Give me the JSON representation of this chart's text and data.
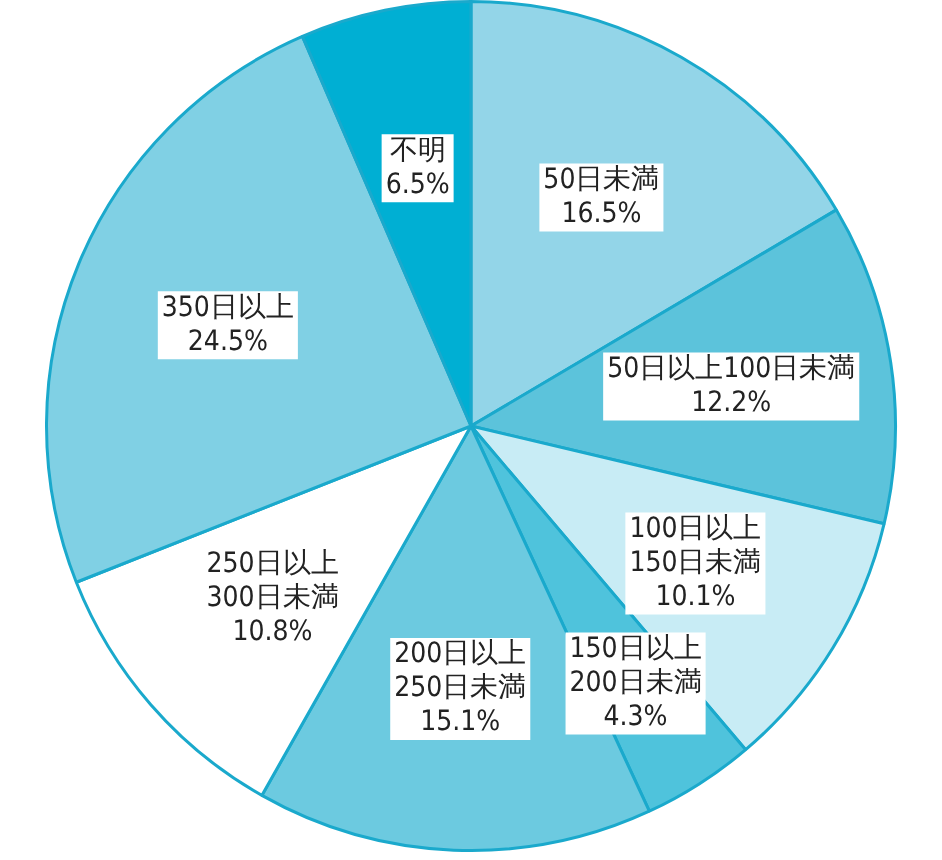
{
  "chart_data": {
    "type": "pie",
    "categories": [
      "50日未満",
      "50日以上100日未満",
      "100日以上\n150日未満",
      "150日以上\n200日未満",
      "200日以上\n250日未満",
      "250日以上\n300日未満",
      "350日以上",
      "不明"
    ],
    "values": [
      16.5,
      12.2,
      10.1,
      4.3,
      15.1,
      10.8,
      24.5,
      6.5
    ],
    "colors": [
      "#93d5e8",
      "#5cc3db",
      "#c8ecf5",
      "#4fc3dc",
      "#6ccae0",
      "#ffffff",
      "#80d0e4",
      "#00afd3"
    ],
    "value_labels": [
      "16.5%",
      "12.2%",
      "10.1%",
      "4.3%",
      "15.1%",
      "10.8%",
      "24.5%",
      "6.5%"
    ],
    "legend": false
  }
}
